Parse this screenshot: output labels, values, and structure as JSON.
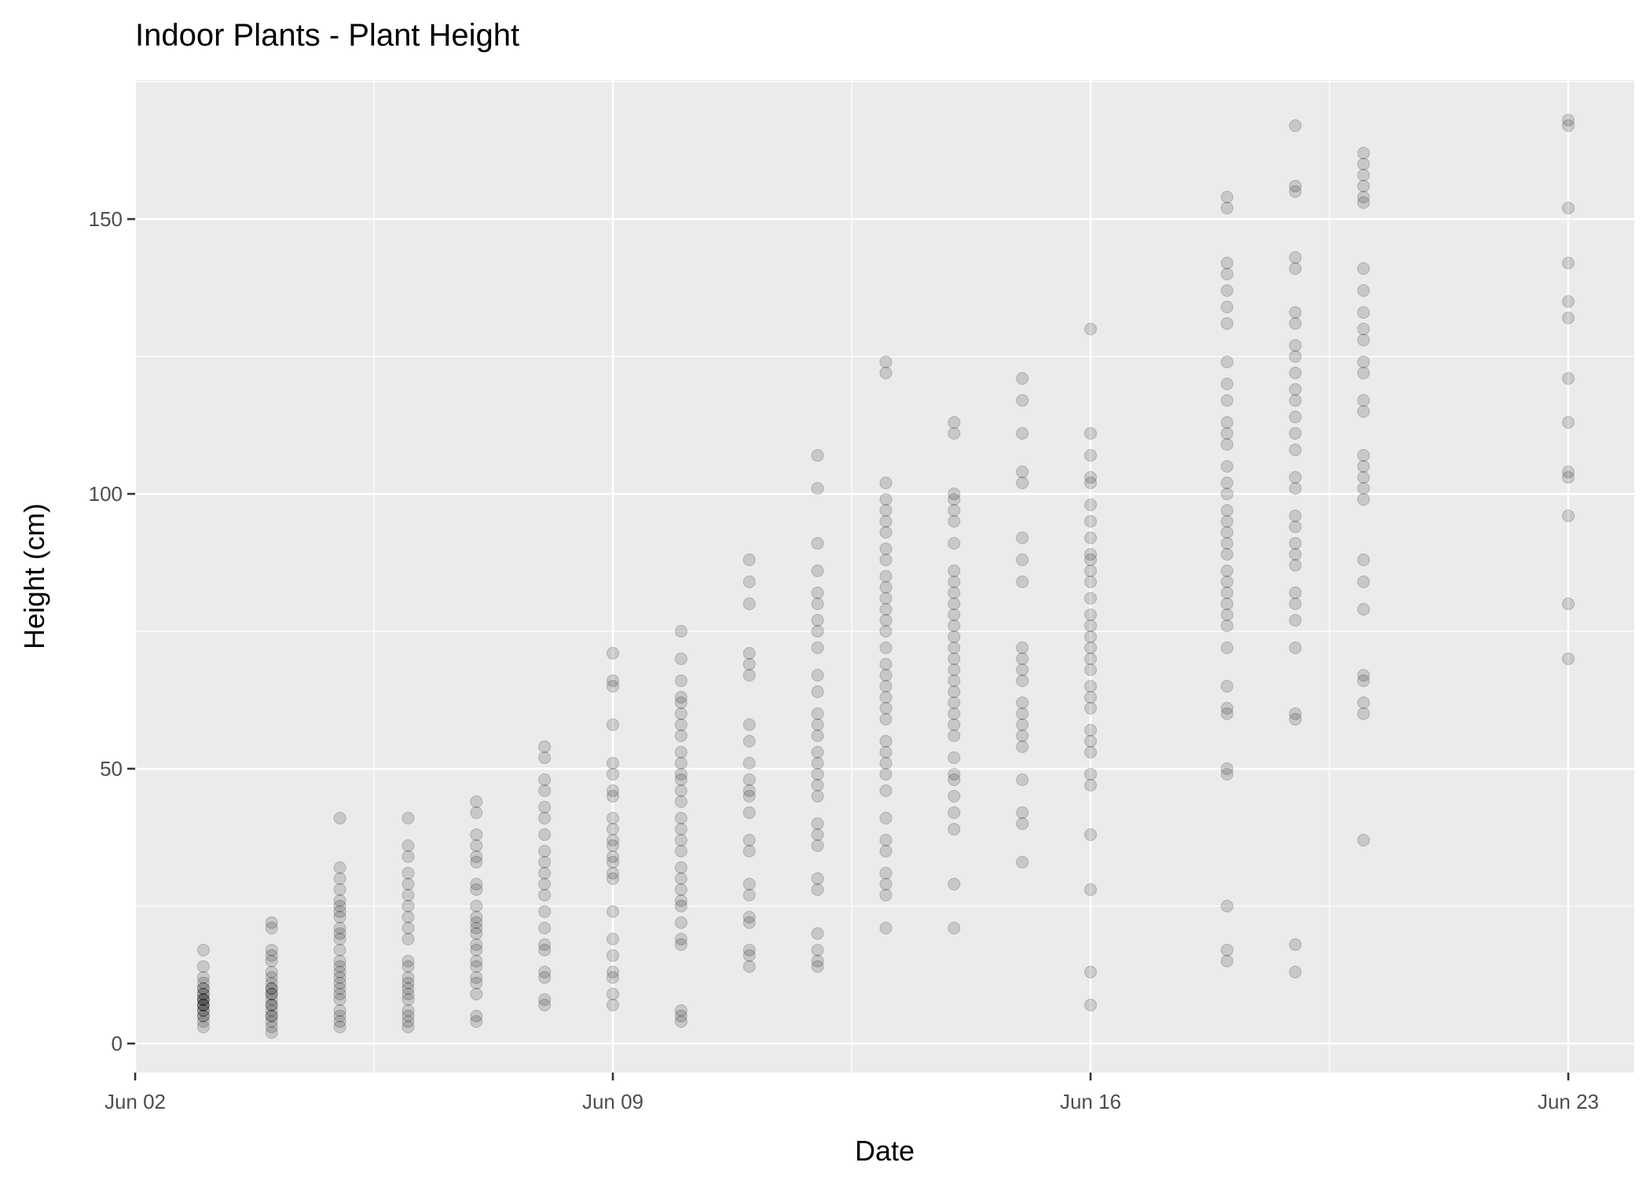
{
  "chart_data": {
    "type": "scatter",
    "title": "Indoor Plants - Plant Height",
    "xlabel": "Date",
    "ylabel": "Height (cm)",
    "x_range": [
      "2024-06-02",
      "2024-06-23"
    ],
    "ylim": [
      -7,
      175
    ],
    "y_ticks": [
      0,
      50,
      100,
      150
    ],
    "x_ticks": [
      {
        "date": "2024-06-02",
        "label": "Jun 02"
      },
      {
        "date": "2024-06-09",
        "label": "Jun 09"
      },
      {
        "date": "2024-06-16",
        "label": "Jun 16"
      },
      {
        "date": "2024-06-23",
        "label": "Jun 23"
      }
    ],
    "grid": true,
    "point_color": "#000000",
    "point_opacity": 0.15,
    "panel_background": "#ebebeb",
    "points_by_date": [
      {
        "date": "2024-06-03",
        "heights": [
          17,
          14,
          12,
          11,
          10,
          10,
          9,
          9,
          8,
          8,
          8,
          7,
          7,
          7,
          6,
          6,
          5,
          5,
          4,
          3
        ]
      },
      {
        "date": "2024-06-04",
        "heights": [
          22,
          21,
          17,
          16,
          15,
          13,
          12,
          11,
          10,
          10,
          9,
          9,
          8,
          7,
          7,
          6,
          5,
          5,
          4,
          3,
          2
        ]
      },
      {
        "date": "2024-06-05",
        "heights": [
          41,
          32,
          30,
          28,
          26,
          25,
          24,
          23,
          21,
          20,
          19,
          17,
          15,
          14,
          13,
          12,
          11,
          10,
          9,
          8,
          6,
          5,
          4,
          3
        ]
      },
      {
        "date": "2024-06-06",
        "heights": [
          41,
          36,
          34,
          31,
          29,
          27,
          25,
          23,
          21,
          19,
          15,
          14,
          12,
          11,
          10,
          9,
          8,
          6,
          5,
          4,
          3
        ]
      },
      {
        "date": "2024-06-07",
        "heights": [
          44,
          42,
          38,
          36,
          34,
          33,
          29,
          28,
          25,
          23,
          22,
          21,
          20,
          18,
          17,
          15,
          14,
          12,
          11,
          9,
          5,
          4
        ]
      },
      {
        "date": "2024-06-08",
        "heights": [
          54,
          52,
          48,
          46,
          43,
          41,
          38,
          35,
          33,
          31,
          29,
          27,
          24,
          21,
          18,
          17,
          13,
          12,
          8,
          7
        ]
      },
      {
        "date": "2024-06-09",
        "heights": [
          71,
          66,
          65,
          58,
          51,
          49,
          46,
          45,
          41,
          39,
          37,
          36,
          34,
          33,
          31,
          30,
          24,
          19,
          16,
          13,
          12,
          9,
          7
        ]
      },
      {
        "date": "2024-06-10",
        "heights": [
          75,
          70,
          66,
          63,
          62,
          60,
          58,
          56,
          53,
          51,
          49,
          48,
          46,
          44,
          41,
          39,
          37,
          35,
          32,
          30,
          28,
          26,
          25,
          22,
          19,
          18,
          6,
          5,
          4
        ]
      },
      {
        "date": "2024-06-11",
        "heights": [
          88,
          84,
          80,
          71,
          69,
          67,
          58,
          55,
          51,
          48,
          46,
          45,
          42,
          37,
          35,
          29,
          27,
          23,
          22,
          17,
          16,
          14
        ]
      },
      {
        "date": "2024-06-12",
        "heights": [
          107,
          101,
          91,
          86,
          82,
          80,
          77,
          75,
          72,
          67,
          64,
          60,
          58,
          56,
          53,
          51,
          49,
          47,
          45,
          40,
          38,
          36,
          30,
          28,
          20,
          17,
          15,
          14
        ]
      },
      {
        "date": "2024-06-13",
        "heights": [
          124,
          122,
          102,
          99,
          97,
          95,
          93,
          90,
          88,
          85,
          83,
          81,
          79,
          77,
          75,
          72,
          69,
          67,
          65,
          63,
          61,
          59,
          55,
          53,
          51,
          49,
          46,
          41,
          37,
          35,
          31,
          29,
          27,
          21
        ]
      },
      {
        "date": "2024-06-14",
        "heights": [
          113,
          111,
          100,
          99,
          97,
          95,
          91,
          86,
          84,
          82,
          80,
          78,
          76,
          74,
          72,
          70,
          68,
          66,
          64,
          62,
          60,
          58,
          56,
          52,
          49,
          48,
          45,
          42,
          39,
          29,
          21
        ]
      },
      {
        "date": "2024-06-15",
        "heights": [
          121,
          117,
          111,
          104,
          102,
          92,
          88,
          84,
          72,
          70,
          68,
          66,
          62,
          60,
          58,
          56,
          54,
          48,
          42,
          40,
          33
        ]
      },
      {
        "date": "2024-06-16",
        "heights": [
          130,
          111,
          107,
          103,
          102,
          98,
          95,
          92,
          89,
          88,
          86,
          84,
          81,
          78,
          76,
          74,
          72,
          70,
          68,
          65,
          63,
          61,
          57,
          55,
          53,
          49,
          47,
          38,
          28,
          13,
          7
        ]
      },
      {
        "date": "2024-06-18",
        "heights": [
          154,
          152,
          142,
          140,
          137,
          134,
          131,
          124,
          120,
          117,
          113,
          111,
          109,
          105,
          102,
          100,
          97,
          95,
          93,
          91,
          89,
          86,
          84,
          82,
          80,
          78,
          76,
          72,
          65,
          61,
          60,
          50,
          49,
          25,
          17,
          15
        ]
      },
      {
        "date": "2024-06-19",
        "heights": [
          167,
          156,
          155,
          143,
          141,
          133,
          131,
          127,
          125,
          122,
          119,
          117,
          114,
          111,
          108,
          103,
          101,
          96,
          94,
          91,
          89,
          87,
          82,
          80,
          77,
          72,
          60,
          59,
          18,
          13
        ]
      },
      {
        "date": "2024-06-20",
        "heights": [
          162,
          160,
          158,
          156,
          154,
          153,
          141,
          137,
          133,
          130,
          128,
          124,
          122,
          117,
          115,
          107,
          105,
          103,
          101,
          99,
          88,
          84,
          79,
          67,
          66,
          62,
          60,
          37
        ]
      },
      {
        "date": "2024-06-23",
        "heights": [
          168,
          167,
          152,
          142,
          135,
          132,
          121,
          113,
          104,
          103,
          96,
          80,
          70
        ]
      }
    ]
  }
}
